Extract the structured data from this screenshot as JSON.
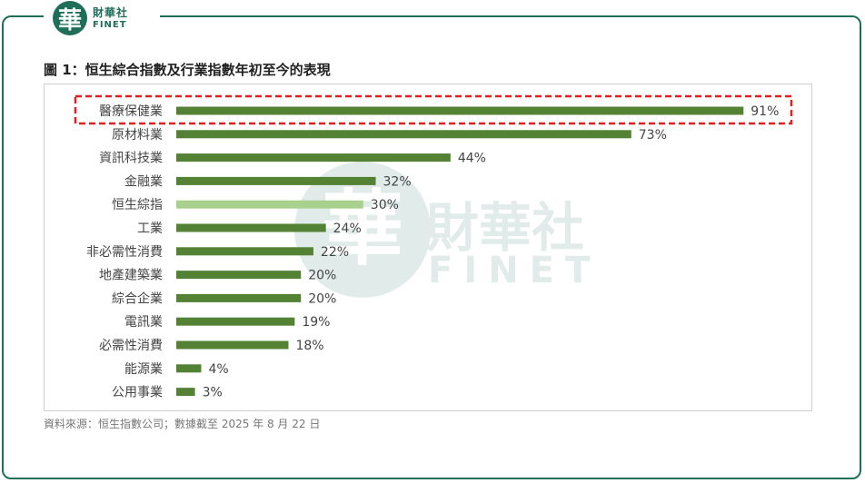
{
  "logo": {
    "seal": "華",
    "cn": "財華社",
    "en": "FINET"
  },
  "watermark": {
    "cn": "財華社",
    "en": "FINET",
    "seal": "華"
  },
  "figure_title": "圖 1：恒生綜合指數及行業指數年初至今的表現",
  "source": "資料來源：恒生指數公司；數據截至 2025 年 8 月 22 日",
  "colors": {
    "bar": "#548235",
    "highlight_bar": "#a9d18e",
    "callout": "#e02020",
    "frame": "#1f6e5a"
  },
  "chart_data": {
    "type": "bar",
    "orientation": "horizontal",
    "categories": [
      "醫療保健業",
      "原材料業",
      "資訊科技業",
      "金融業",
      "恒生綜指",
      "工業",
      "非必需性消費",
      "地產建築業",
      "綜合企業",
      "電訊業",
      "必需性消費",
      "能源業",
      "公用事業"
    ],
    "values": [
      91,
      73,
      44,
      32,
      30,
      24,
      22,
      20,
      20,
      19,
      18,
      4,
      3
    ],
    "value_labels": [
      "91%",
      "73%",
      "44%",
      "32%",
      "30%",
      "24%",
      "22%",
      "20%",
      "20%",
      "19%",
      "18%",
      "4%",
      "3%"
    ],
    "highlighted_category": "恒生綜指",
    "callout_category": "醫療保健業",
    "xlim": [
      0,
      100
    ],
    "grid": false,
    "legend": "none"
  }
}
